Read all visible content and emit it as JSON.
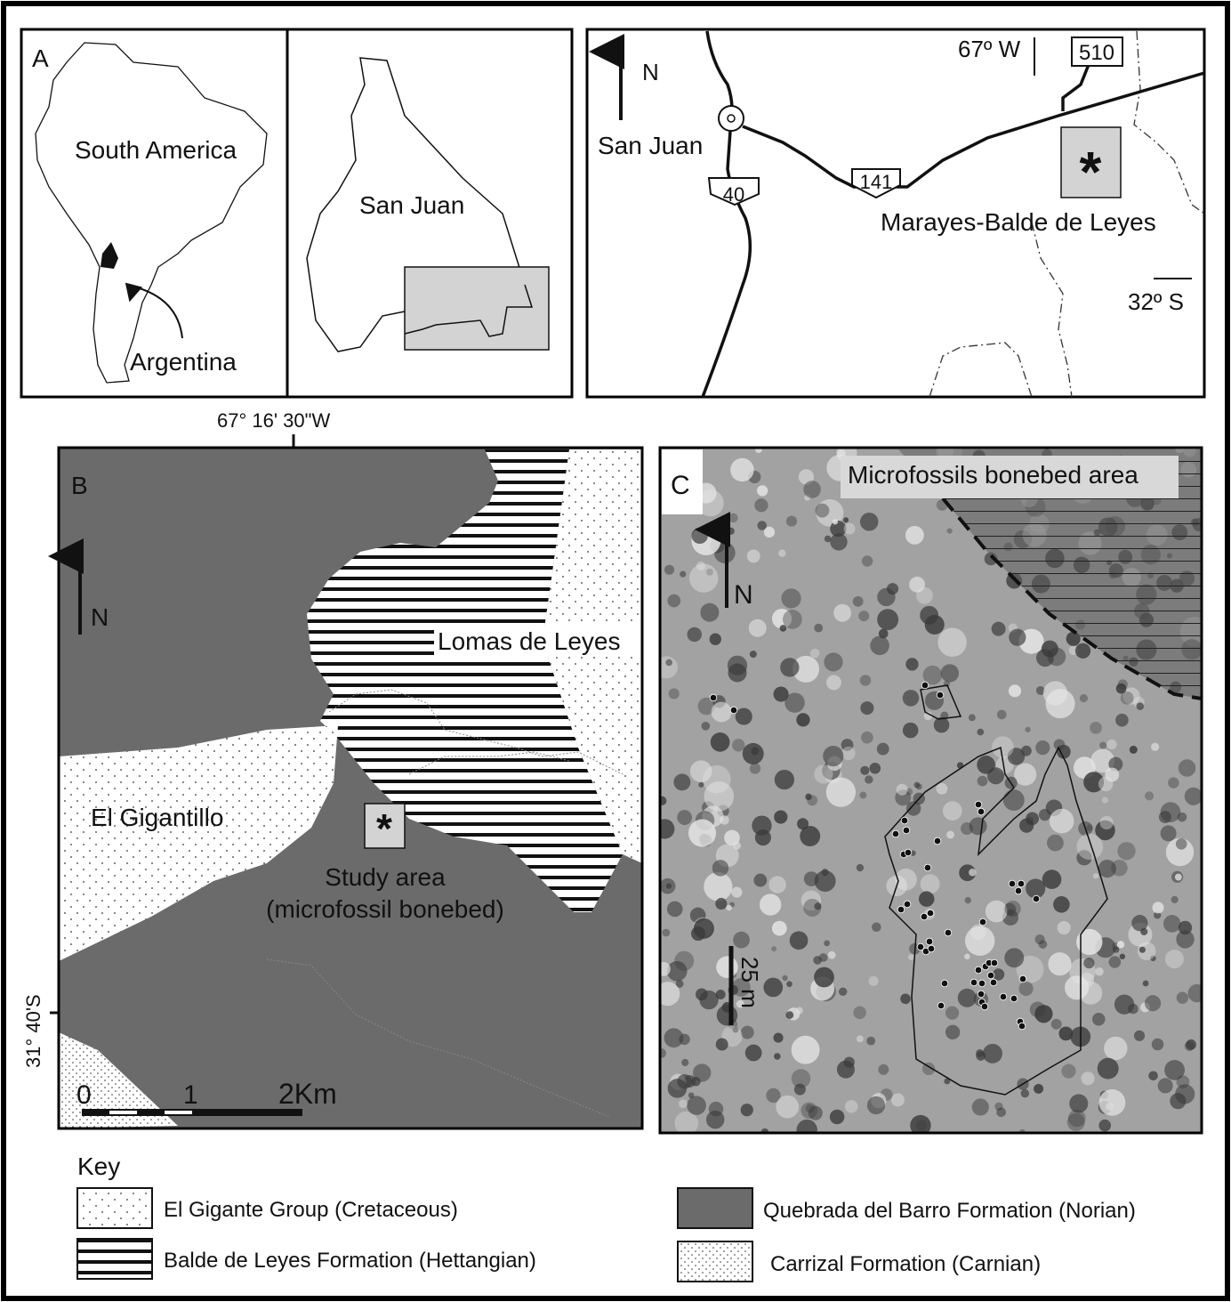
{
  "panel_a": {
    "label": "A",
    "continent": "South America",
    "country": "Argentina",
    "province": "San Juan"
  },
  "location_map": {
    "north": "N",
    "longitude": "67º W",
    "city": "San Juan",
    "routes": [
      "40",
      "141",
      "510"
    ],
    "site_marker": "*",
    "site": "Marayes-Balde de Leyes",
    "latitude": "32º S"
  },
  "panel_b": {
    "label": "B",
    "longitude": "67° 16' 30\"W",
    "latitude": "31° 40'S",
    "north": "N",
    "localities": [
      "Lomas de Leyes",
      "El Gigantillo"
    ],
    "site_marker": "*",
    "study_area": [
      "Study area",
      "(microfossil bonebed)"
    ],
    "scale": [
      "0",
      "1",
      "2Km"
    ]
  },
  "panel_c": {
    "label": "C",
    "area": "Microfossils bonebed area",
    "north": "N",
    "scale": "25 m"
  },
  "key": {
    "title": "Key",
    "items": [
      "El Gigante Group (Cretaceous)",
      "Balde de Leyes Formation (Hettangian)",
      "Quebrada del Barro Formation (Norian)",
      "Carrizal Formation (Carnian)"
    ]
  }
}
